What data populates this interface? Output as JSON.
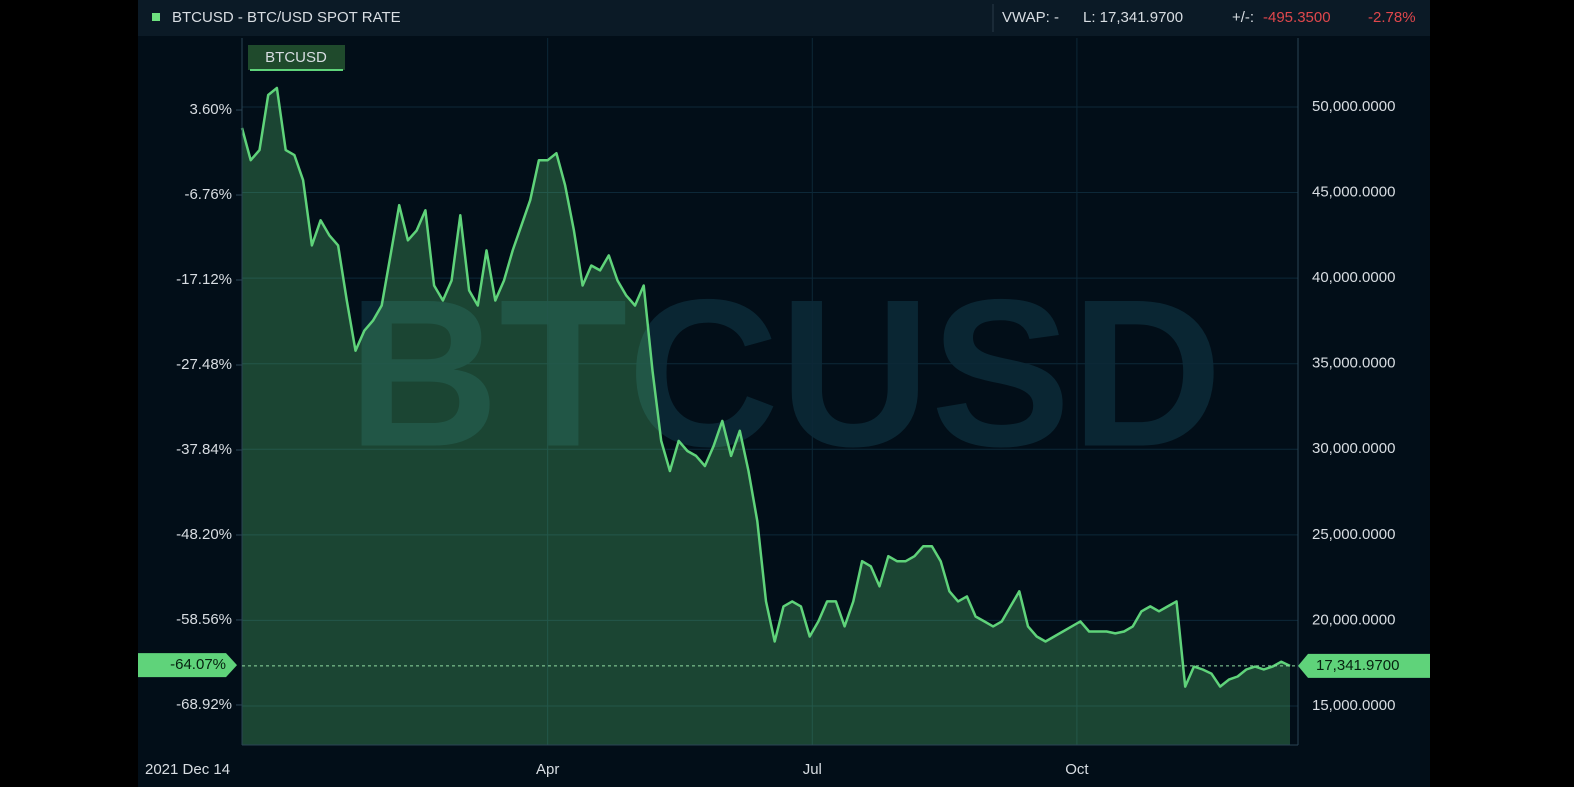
{
  "chart_data": {
    "type": "line",
    "title": "BTCUSD - BTC/USD SPOT RATE",
    "stats": {
      "vwap": "VWAP: -",
      "last": "L: 17,341.9700",
      "change_label": "+/-:",
      "change": "-495.3500",
      "change_pct": "-2.78%"
    },
    "legend": "BTCUSD",
    "watermark": "BTCUSD",
    "series": [
      {
        "name": "BTCUSD",
        "color": "#5fd37a",
        "values": [
          48770,
          46890,
          47480,
          50700,
          51110,
          47480,
          47190,
          45720,
          41910,
          43380,
          42500,
          41910,
          38690,
          35760,
          36930,
          37520,
          38400,
          41330,
          44260,
          42210,
          42790,
          43960,
          39570,
          38690,
          39860,
          43670,
          39280,
          38400,
          41620,
          38690,
          39860,
          41620,
          43090,
          44550,
          46890,
          46890,
          47300,
          45430,
          42790,
          39570,
          40740,
          40450,
          41330,
          39860,
          38980,
          38400,
          39570,
          34590,
          30490,
          28730,
          30490,
          29900,
          29610,
          29020,
          30190,
          31660,
          29610,
          31080,
          28730,
          25800,
          21110,
          18770,
          20820,
          21110,
          20820,
          19060,
          19940,
          21110,
          21110,
          19650,
          21110,
          23460,
          23160,
          21990,
          23750,
          23460,
          23460,
          23750,
          24330,
          24330,
          23460,
          21700,
          21110,
          21400,
          20230,
          19940,
          19650,
          19940,
          20820,
          21700,
          19650,
          19060,
          18770,
          19060,
          19350,
          19650,
          19940,
          19350,
          19350,
          19350,
          19240,
          19350,
          19650,
          20530,
          20820,
          20530,
          20820,
          21110,
          16130,
          17300,
          17130,
          16890,
          16130,
          16540,
          16720,
          17130,
          17300,
          17130,
          17300,
          17590,
          17341.97
        ]
      }
    ],
    "last_value_label": "17,341.9700",
    "last_pct": {
      "value": -64.07,
      "label": "-64.07%"
    },
    "xlim": [
      0,
      120
    ],
    "start_label": "2021 Dec 14",
    "xticks": [
      {
        "value": 35.0,
        "label": "Apr"
      },
      {
        "value": 65.3,
        "label": "Jul"
      },
      {
        "value": 95.6,
        "label": "Oct"
      }
    ],
    "ylim": [
      12720,
      54030
    ],
    "yticks": [
      {
        "value": 15000,
        "label": "15,000.0000"
      },
      {
        "value": 20000,
        "label": "20,000.0000"
      },
      {
        "value": 25000,
        "label": "25,000.0000"
      },
      {
        "value": 30000,
        "label": "30,000.0000"
      },
      {
        "value": 35000,
        "label": "35,000.0000"
      },
      {
        "value": 40000,
        "label": "40,000.0000"
      },
      {
        "value": 45000,
        "label": "45,000.0000"
      },
      {
        "value": 50000,
        "label": "50,000.0000"
      }
    ],
    "y2lim": [
      -73.8,
      12.38
    ],
    "y2ticks": [
      {
        "value": -68.92,
        "label": "-68.92%"
      },
      {
        "value": -58.56,
        "label": "-58.56%"
      },
      {
        "value": -48.2,
        "label": "-48.20%"
      },
      {
        "value": -37.84,
        "label": "-37.84%"
      },
      {
        "value": -27.48,
        "label": "-27.48%"
      },
      {
        "value": -17.12,
        "label": "-17.12%"
      },
      {
        "value": -6.76,
        "label": "-6.76%"
      },
      {
        "value": 3.6,
        "label": "3.60%"
      }
    ],
    "grid": true
  }
}
